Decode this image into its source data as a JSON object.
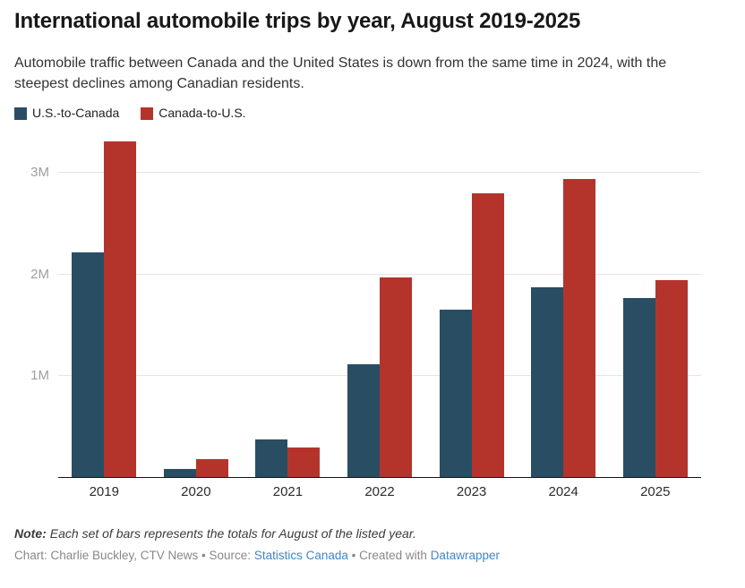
{
  "header": {
    "title": "International automobile trips by year, August 2019-2025",
    "subtitle": "Automobile traffic between Canada and the United States is down from the same time in 2024, with the steepest declines among Canadian residents."
  },
  "legend": [
    {
      "label": "U.S.-to-Canada",
      "color": "#294e64"
    },
    {
      "label": "Canada-to-U.S.",
      "color": "#b4342c"
    }
  ],
  "chart_data": {
    "type": "bar",
    "title": "International automobile trips by year, August 2019-2025",
    "categories": [
      "2019",
      "2020",
      "2021",
      "2022",
      "2023",
      "2024",
      "2025"
    ],
    "series": [
      {
        "name": "U.S.-to-Canada",
        "color": "#294e64",
        "values": [
          2220000,
          80000,
          370000,
          1110000,
          1650000,
          1870000,
          1770000
        ]
      },
      {
        "name": "Canada-to-U.S.",
        "color": "#b4342c",
        "values": [
          3310000,
          180000,
          290000,
          1970000,
          2800000,
          2940000,
          1940000
        ]
      }
    ],
    "xlabel": "",
    "ylabel": "",
    "ylim": [
      0,
      3392000
    ],
    "yticks": [
      {
        "value": 1000000,
        "label": "1M"
      },
      {
        "value": 2000000,
        "label": "2M"
      },
      {
        "value": 3000000,
        "label": "3M"
      }
    ],
    "grid": true,
    "legend_position": "top"
  },
  "footer": {
    "note_label": "Note:",
    "note_text": "Each set of bars represents the totals for August of the listed year.",
    "credit_prefix": "Chart: Charlie Buckley, CTV News • Source:",
    "source_link_label": "Statistics Canada",
    "credit_middle": "• Created with",
    "tool_link_label": "Datawrapper"
  },
  "colors": {
    "us_to_canada": "#294e64",
    "canada_to_us": "#b4342c",
    "link": "#4286c8",
    "gridline": "#e4e4e4",
    "axis_line": "#141414"
  }
}
